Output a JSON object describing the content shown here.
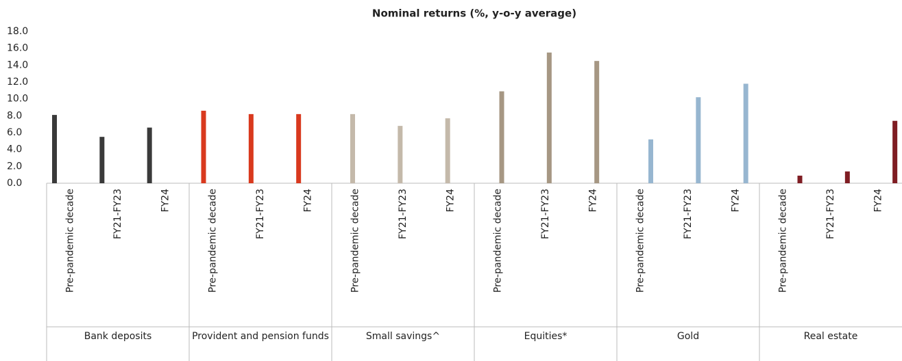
{
  "chart_data": {
    "type": "grouped-bar",
    "title": "Nominal returns (%, y-o-y average)",
    "groups": [
      {
        "name": "Bank deposits",
        "color": "#3a3a3a",
        "categories": [
          "Pre-pandemic decade",
          "FY21-FY23",
          "FY24"
        ],
        "values": [
          8.1,
          5.5,
          6.6
        ]
      },
      {
        "name": "Provident and pension funds",
        "color": "#d9391e",
        "categories": [
          "Pre-pandemic decade",
          "FY21-FY23",
          "FY24"
        ],
        "values": [
          8.6,
          8.2,
          8.2
        ]
      },
      {
        "name": "Small savings^",
        "color": "#c4b9aa",
        "categories": [
          "Pre-pandemic decade",
          "FY21-FY23",
          "FY24"
        ],
        "values": [
          8.2,
          6.8,
          7.7
        ]
      },
      {
        "name": "Equities*",
        "color": "#a69783",
        "categories": [
          "Pre-pandemic decade",
          "FY21-FY23",
          "FY24"
        ],
        "values": [
          10.9,
          15.5,
          14.5
        ]
      },
      {
        "name": "Gold",
        "color": "#97b6d0",
        "categories": [
          "Pre-pandemic decade",
          "FY21-FY23",
          "FY24"
        ],
        "values": [
          5.2,
          10.2,
          11.8
        ]
      },
      {
        "name": "Real estate",
        "color": "#7f1d23",
        "categories": [
          "Pre-pandemic decade",
          "FY21-FY23",
          "FY24"
        ],
        "values": [
          0.9,
          1.4,
          7.4
        ]
      }
    ],
    "ylim": [
      0,
      18
    ],
    "yticks": [
      {
        "value": 0,
        "label": "0.0"
      },
      {
        "value": 2,
        "label": "2.0"
      },
      {
        "value": 4,
        "label": "4.0"
      },
      {
        "value": 6,
        "label": "6.0"
      },
      {
        "value": 8,
        "label": "8.0"
      },
      {
        "value": 10,
        "label": "10.0"
      },
      {
        "value": 12,
        "label": "12.0"
      },
      {
        "value": 14,
        "label": "14.0"
      },
      {
        "value": 16,
        "label": "16.0"
      },
      {
        "value": 18,
        "label": "18.0"
      }
    ],
    "grid": false
  }
}
